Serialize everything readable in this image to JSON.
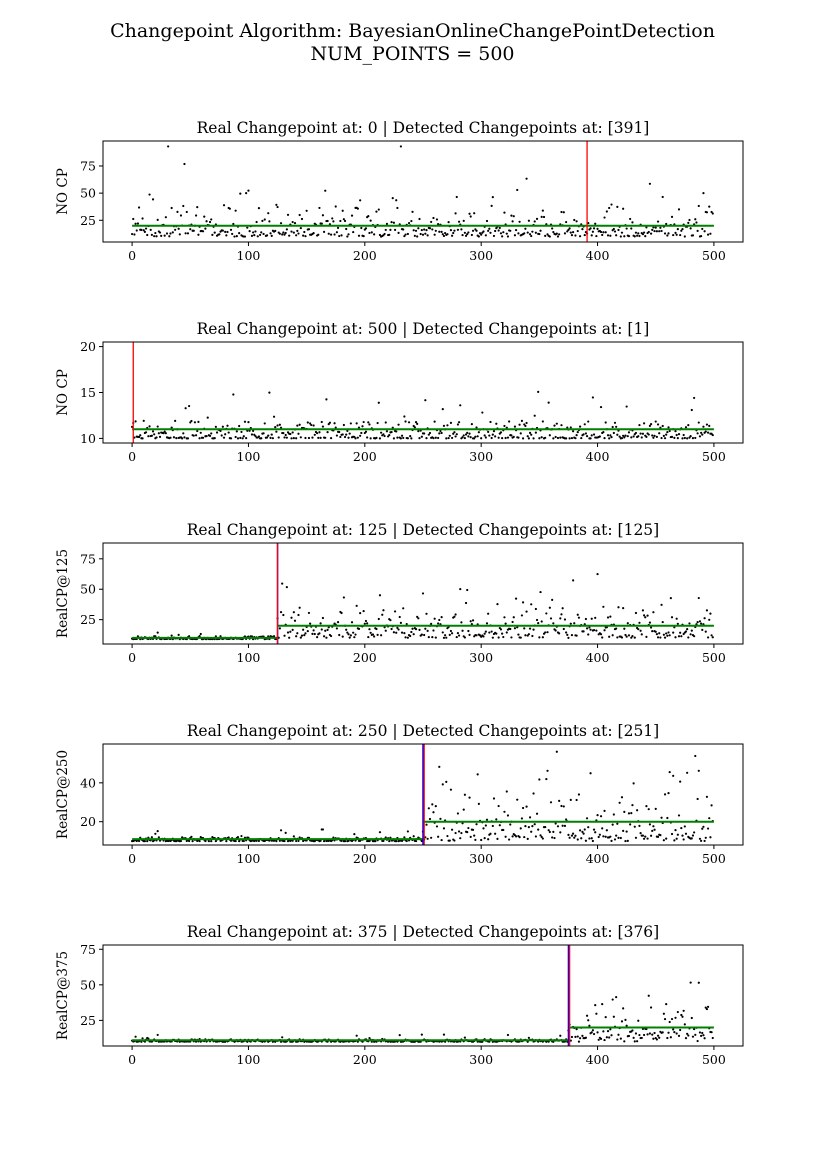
{
  "figure": {
    "title_line1": "Changepoint Algorithm: BayesianOnlineChangePointDetection",
    "title_line2": "NUM_POINTS = 500"
  },
  "colors": {
    "points": "#000000",
    "mean_line": "#008000",
    "detected": "#ff0000",
    "real": "#0000ff"
  },
  "chart_data": [
    {
      "type": "scatter",
      "title": "Real Changepoint at: 0 | Detected Changepoints at: [391]",
      "ylabel": "NO CP",
      "xlim": [
        -25,
        525
      ],
      "ylim": [
        5,
        98
      ],
      "xticks": [
        0,
        100,
        200,
        300,
        400,
        500
      ],
      "yticks": [
        25,
        50,
        75
      ],
      "n_points": 500,
      "real_changepoint": 0,
      "detected_changepoints": [
        391
      ],
      "segments": [
        {
          "x_start": 0,
          "x_end": 500,
          "mean": 20,
          "min": 10,
          "max": 93
        }
      ]
    },
    {
      "type": "scatter",
      "title": "Real Changepoint at: 500 | Detected Changepoints at: [1]",
      "ylabel": "NO CP",
      "xlim": [
        -25,
        525
      ],
      "ylim": [
        9.5,
        20.5
      ],
      "xticks": [
        0,
        100,
        200,
        300,
        400,
        500
      ],
      "yticks": [
        10,
        15,
        20
      ],
      "n_points": 500,
      "real_changepoint": 500,
      "detected_changepoints": [
        1
      ],
      "segments": [
        {
          "x_start": 0,
          "x_end": 500,
          "mean": 11,
          "min": 10,
          "max": 15.5
        }
      ]
    },
    {
      "type": "scatter",
      "title": "Real Changepoint at: 125 | Detected Changepoints at: [125]",
      "ylabel": "RealCP@125",
      "xlim": [
        -25,
        525
      ],
      "ylim": [
        5,
        88
      ],
      "xticks": [
        0,
        100,
        200,
        300,
        400,
        500
      ],
      "yticks": [
        25,
        50,
        75
      ],
      "n_points": 500,
      "real_changepoint": 125,
      "detected_changepoints": [
        125
      ],
      "segments": [
        {
          "x_start": 0,
          "x_end": 125,
          "mean": 10,
          "min": 9,
          "max": 16
        },
        {
          "x_start": 125,
          "x_end": 500,
          "mean": 20,
          "min": 10,
          "max": 84
        }
      ]
    },
    {
      "type": "scatter",
      "title": "Real Changepoint at: 250 | Detected Changepoints at: [251]",
      "ylabel": "RealCP@250",
      "xlim": [
        -25,
        525
      ],
      "ylim": [
        8,
        60
      ],
      "xticks": [
        0,
        100,
        200,
        300,
        400,
        500
      ],
      "yticks": [
        20,
        40
      ],
      "n_points": 500,
      "real_changepoint": 250,
      "detected_changepoints": [
        251
      ],
      "segments": [
        {
          "x_start": 0,
          "x_end": 250,
          "mean": 11,
          "min": 10,
          "max": 16
        },
        {
          "x_start": 250,
          "x_end": 500,
          "mean": 20,
          "min": 10,
          "max": 56
        }
      ]
    },
    {
      "type": "scatter",
      "title": "Real Changepoint at: 375 | Detected Changepoints at: [376]",
      "ylabel": "RealCP@375",
      "xlim": [
        -25,
        525
      ],
      "ylim": [
        7,
        78
      ],
      "xticks": [
        0,
        100,
        200,
        300,
        400,
        500
      ],
      "yticks": [
        25,
        50,
        75
      ],
      "n_points": 500,
      "real_changepoint": 375,
      "detected_changepoints": [
        376
      ],
      "segments": [
        {
          "x_start": 0,
          "x_end": 375,
          "mean": 11,
          "min": 10,
          "max": 15
        },
        {
          "x_start": 375,
          "x_end": 500,
          "mean": 20,
          "min": 10,
          "max": 74
        }
      ]
    }
  ]
}
